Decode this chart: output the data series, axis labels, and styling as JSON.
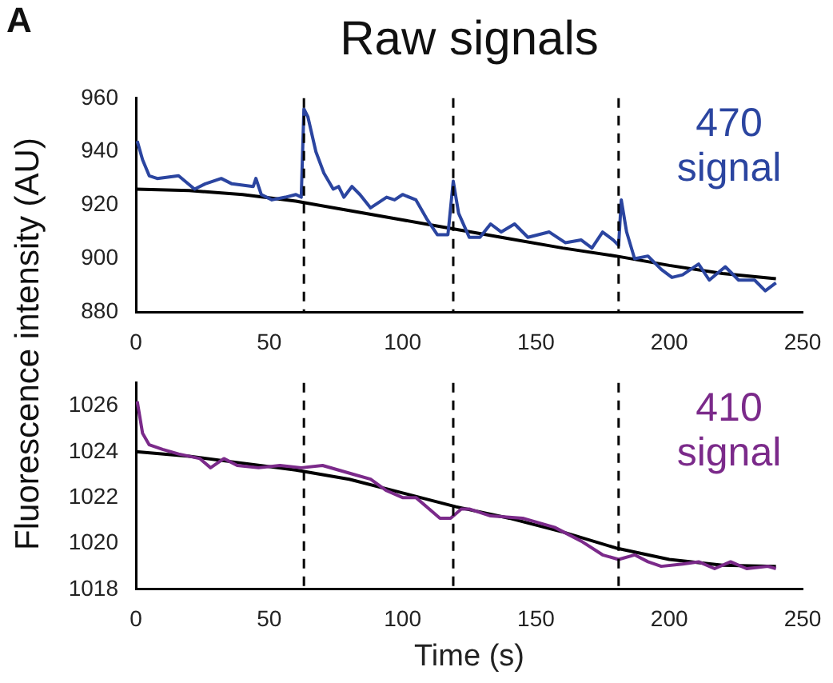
{
  "chart_data": [
    {
      "type": "line",
      "title": "Raw signals",
      "ylabel": "Fluorescence intensity (AU)",
      "annotations": [
        "A"
      ],
      "xlim": [
        0,
        250
      ],
      "xticks": [
        0,
        50,
        100,
        150,
        200,
        250
      ],
      "ylim": [
        880,
        960
      ],
      "yticks": [
        880,
        900,
        920,
        940,
        960
      ],
      "grid": false,
      "legend": false,
      "marker": "none",
      "line_style": "solid",
      "series": [
        {
          "name": "470 signal",
          "color": "#2b45a0",
          "x": [
            0.5,
            2.5,
            5,
            8,
            16,
            22,
            26,
            32,
            36,
            44,
            45,
            47,
            51,
            56,
            60,
            62,
            63,
            64.5,
            67.5,
            70.5,
            74,
            76,
            78,
            81,
            84,
            88,
            94,
            97,
            100,
            105,
            109,
            113,
            117,
            119,
            121,
            125,
            129,
            133,
            137,
            142,
            147,
            155,
            161,
            167,
            171,
            175,
            179,
            181,
            182,
            184,
            187,
            192,
            197,
            201,
            205,
            211,
            215,
            221,
            226,
            232,
            236,
            240
          ],
          "values": [
            944,
            937,
            931,
            930,
            931,
            926,
            928,
            930,
            928,
            927,
            930,
            924,
            922,
            923,
            924,
            923,
            956,
            953,
            940,
            932,
            926,
            927,
            923,
            927,
            924,
            919,
            923,
            922,
            924,
            922,
            915,
            909,
            909,
            929,
            917,
            908,
            908,
            913,
            910,
            913,
            908,
            910,
            906,
            907,
            904,
            910,
            907,
            905,
            922,
            910,
            900,
            901,
            896,
            893,
            894,
            898,
            892,
            897,
            892,
            892,
            888,
            891
          ]
        },
        {
          "color": "#000000",
          "x": [
            0,
            20,
            40,
            60,
            80,
            100,
            120,
            140,
            160,
            180,
            200,
            220,
            240
          ],
          "values": [
            926,
            925.5,
            924,
            921.5,
            918,
            914.5,
            911,
            907.5,
            904,
            901,
            897.5,
            894.5,
            892.5
          ]
        }
      ],
      "ref_lines": [
        {
          "axis": "x",
          "value": 63,
          "color": "#000000",
          "line_style": "dashed"
        },
        {
          "axis": "x",
          "value": 119,
          "color": "#000000",
          "line_style": "dashed"
        },
        {
          "axis": "x",
          "value": 181,
          "color": "#000000",
          "line_style": "dashed"
        }
      ]
    },
    {
      "type": "line",
      "xlabel": "Time (s)",
      "xlim": [
        0,
        250
      ],
      "xticks": [
        0,
        50,
        100,
        150,
        200,
        250
      ],
      "ylim": [
        1018,
        1027
      ],
      "yticks": [
        1018,
        1020,
        1022,
        1024,
        1026
      ],
      "grid": false,
      "legend": false,
      "marker": "none",
      "line_style": "solid",
      "series": [
        {
          "name": "410 signal",
          "color": "#7b2a8a",
          "x": [
            0.5,
            2.5,
            5,
            10,
            16,
            24,
            28,
            33,
            38,
            46,
            54,
            62,
            70,
            76,
            82,
            88,
            94,
            100,
            105,
            110,
            114,
            118,
            122,
            125,
            133,
            145,
            157,
            167,
            175,
            181,
            187,
            192,
            197,
            205,
            211,
            217,
            223,
            229,
            237,
            240
          ],
          "values": [
            1026.2,
            1024.8,
            1024.3,
            1024.1,
            1023.9,
            1023.7,
            1023.3,
            1023.7,
            1023.4,
            1023.3,
            1023.4,
            1023.3,
            1023.4,
            1023.2,
            1023.0,
            1022.8,
            1022.3,
            1022.0,
            1022.0,
            1021.5,
            1021.1,
            1021.1,
            1021.5,
            1021.5,
            1021.2,
            1021.1,
            1020.7,
            1020.1,
            1019.5,
            1019.3,
            1019.5,
            1019.2,
            1019.0,
            1019.1,
            1019.2,
            1018.9,
            1019.2,
            1018.9,
            1019.0,
            1018.9
          ]
        },
        {
          "color": "#000000",
          "x": [
            0,
            20,
            40,
            60,
            80,
            100,
            120,
            140,
            160,
            180,
            200,
            220,
            240
          ],
          "values": [
            1024.0,
            1023.8,
            1023.5,
            1023.2,
            1022.8,
            1022.2,
            1021.6,
            1021.1,
            1020.5,
            1019.8,
            1019.3,
            1019.05,
            1019.0
          ]
        }
      ],
      "ref_lines": [
        {
          "axis": "x",
          "value": 63,
          "color": "#000000",
          "line_style": "dashed"
        },
        {
          "axis": "x",
          "value": 119,
          "color": "#000000",
          "line_style": "dashed"
        },
        {
          "axis": "x",
          "value": 181,
          "color": "#000000",
          "line_style": "dashed"
        }
      ]
    }
  ]
}
